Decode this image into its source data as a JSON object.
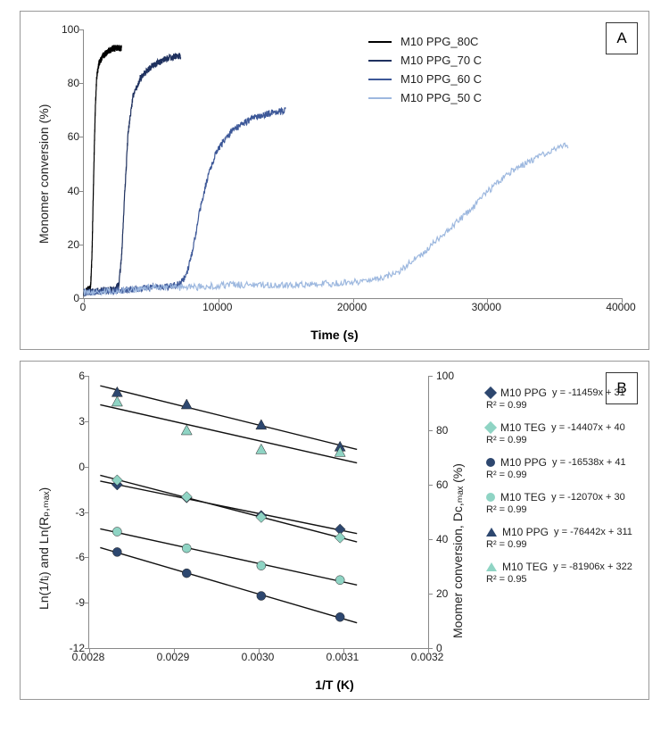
{
  "panelA": {
    "label": "A",
    "x_title": "Time (s)",
    "y_title": "Monomer conversion (%)",
    "xlim": [
      0,
      40000
    ],
    "ylim": [
      0,
      100
    ],
    "xticks": [
      0,
      10000,
      20000,
      30000,
      40000
    ],
    "yticks": [
      0,
      20,
      40,
      60,
      80,
      100
    ],
    "background_color": "#ffffff",
    "series": [
      {
        "name": "M10 PPG_80C",
        "color": "#000000",
        "points": [
          [
            0,
            2
          ],
          [
            300,
            3
          ],
          [
            500,
            4
          ],
          [
            600,
            15
          ],
          [
            750,
            50
          ],
          [
            850,
            70
          ],
          [
            950,
            82
          ],
          [
            1100,
            87
          ],
          [
            1400,
            90
          ],
          [
            1800,
            92
          ],
          [
            2200,
            93
          ],
          [
            2800,
            93
          ]
        ],
        "noise": 2.5
      },
      {
        "name": "M10 PPG_70 C",
        "color": "#1f315f",
        "points": [
          [
            0,
            2
          ],
          [
            1500,
            3
          ],
          [
            2200,
            3
          ],
          [
            2600,
            5
          ],
          [
            2800,
            15
          ],
          [
            3050,
            40
          ],
          [
            3300,
            62
          ],
          [
            3650,
            75
          ],
          [
            4200,
            82
          ],
          [
            5000,
            86
          ],
          [
            6000,
            89
          ],
          [
            6800,
            90
          ],
          [
            7200,
            90
          ]
        ],
        "noise": 2.5
      },
      {
        "name": "M10 PPG_60 C",
        "color": "#3d5898",
        "points": [
          [
            0,
            2
          ],
          [
            3000,
            3
          ],
          [
            5000,
            4
          ],
          [
            6000,
            4
          ],
          [
            7000,
            5
          ],
          [
            7600,
            8
          ],
          [
            8100,
            18
          ],
          [
            8600,
            32
          ],
          [
            9200,
            45
          ],
          [
            9900,
            55
          ],
          [
            11000,
            62
          ],
          [
            12500,
            67
          ],
          [
            14000,
            69
          ],
          [
            15000,
            70
          ]
        ],
        "noise": 2.5
      },
      {
        "name": "M10 PPG_50 C",
        "color": "#9db8df",
        "points": [
          [
            0,
            2
          ],
          [
            3000,
            3
          ],
          [
            5000,
            4
          ],
          [
            8000,
            4
          ],
          [
            11000,
            5
          ],
          [
            14000,
            5
          ],
          [
            17000,
            5
          ],
          [
            20000,
            6
          ],
          [
            22000,
            7
          ],
          [
            23500,
            10
          ],
          [
            25000,
            16
          ],
          [
            27000,
            25
          ],
          [
            29000,
            34
          ],
          [
            30500,
            42
          ],
          [
            32000,
            48
          ],
          [
            33500,
            52
          ],
          [
            35000,
            55
          ],
          [
            36000,
            57
          ]
        ],
        "noise": 2.5
      }
    ]
  },
  "panelB": {
    "label": "B",
    "x_title": "1/T (K)",
    "y_title_left": "Ln(1/tᵢ) and Ln(Rₚ,ₘₐₓ)",
    "y_title_right": "Moomer conversion, Dᴄ,ₘₐₓ (%)",
    "xlim": [
      0.0028,
      0.0032
    ],
    "ylimL": [
      -12,
      6
    ],
    "ylimR": [
      0,
      100
    ],
    "xticks": [
      "0.0028",
      "0.0029",
      "0.0030",
      "0.0031",
      "0.0032"
    ],
    "yticksL": [
      -12,
      -9,
      -6,
      -3,
      0,
      3,
      6
    ],
    "yticksR": [
      0,
      20,
      40,
      60,
      80,
      100
    ],
    "series": [
      {
        "name": "M10 PPG",
        "marker": "diamond",
        "fill": "#2d476f",
        "axis": "L",
        "eq": "y = -11459x + 31",
        "r2": "R² = 0.99",
        "points": [
          [
            0.002833,
            -1.2
          ],
          [
            0.002915,
            -2.05
          ],
          [
            0.003003,
            -3.25
          ],
          [
            0.003096,
            -4.15
          ]
        ]
      },
      {
        "name": "M10 TEG",
        "marker": "diamond",
        "fill": "#8fd4c4",
        "axis": "L",
        "eq": "y = -14407x + 40",
        "r2": "R² = 0.99",
        "points": [
          [
            0.002833,
            -0.9
          ],
          [
            0.002915,
            -2.0
          ],
          [
            0.003003,
            -3.35
          ],
          [
            0.003096,
            -4.7
          ]
        ]
      },
      {
        "name": "M10 PPG",
        "marker": "circle",
        "fill": "#2d476f",
        "axis": "L",
        "eq": "y = -16538x + 41",
        "r2": "R² = 0.99",
        "points": [
          [
            0.002833,
            -5.65
          ],
          [
            0.002915,
            -7.05
          ],
          [
            0.003003,
            -8.55
          ],
          [
            0.003096,
            -9.95
          ]
        ]
      },
      {
        "name": "M10 TEG",
        "marker": "circle",
        "fill": "#8fd4c4",
        "axis": "L",
        "eq": "y = -12070x + 30",
        "r2": "R² = 0.99",
        "points": [
          [
            0.002833,
            -4.3
          ],
          [
            0.002915,
            -5.4
          ],
          [
            0.003003,
            -6.55
          ],
          [
            0.003096,
            -7.5
          ]
        ]
      },
      {
        "name": "M10 PPG",
        "marker": "triangle",
        "fill": "#2d476f",
        "axis": "R",
        "eq": "y = -76442x + 311",
        "r2": "R² = 0.99",
        "points": [
          [
            0.002833,
            94
          ],
          [
            0.002915,
            89.5
          ],
          [
            0.003003,
            82
          ],
          [
            0.003096,
            74
          ]
        ]
      },
      {
        "name": "M10 TEG",
        "marker": "triangle",
        "fill": "#8fd4c4",
        "axis": "R",
        "eq": "y = -81906x + 322",
        "r2": "R² = 0.95",
        "points": [
          [
            0.002833,
            90.5
          ],
          [
            0.002915,
            80
          ],
          [
            0.003003,
            73
          ],
          [
            0.003096,
            72
          ]
        ]
      }
    ]
  }
}
